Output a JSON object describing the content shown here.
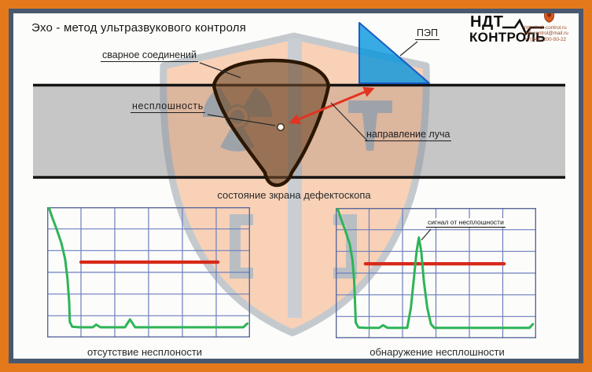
{
  "title": "Эхо - метод ультразвукового контроля",
  "logo": {
    "line1": "НДТ",
    "line2": "КОНТРОЛЬ",
    "pulse_icon": "ecg-pulse-icon",
    "emblem_icon": "shield-emblem-icon",
    "website": "http://ndt-control.ru",
    "email": "ndt-control@mail.ru",
    "phone": "+7(343) 200-50-22"
  },
  "diagram": {
    "weld_label": "сварное соединений",
    "defect_label": "несплошность",
    "probe_label": "ПЭП",
    "beam_label": "направление луча"
  },
  "screens": {
    "caption": "состояние зкрана дефектоскопа"
  },
  "colors": {
    "frame_orange": "#e4791b",
    "frame_slate": "#48596f",
    "plate_gray": "#c6c6c6",
    "weld_outline": "#2b1703",
    "probe_blue": "#0f94de",
    "beam_red": "#e23420",
    "watermark_orange": "#f5a877",
    "watermark_gray": "#8e98a4",
    "trace_green": "#2db457",
    "threshold_red": "#d8291b",
    "grid_blue": "#6d7fbe"
  },
  "chart_data": [
    {
      "type": "line",
      "caption": "отсутствие несплоности",
      "grid": {
        "cols": 6,
        "rows": 6,
        "color": "#6d7fbe",
        "border_color": "#5a699b"
      },
      "threshold": {
        "v": 2.53,
        "u1": 1.0,
        "u2": 5.05,
        "color": "#d8291b"
      },
      "series": [
        {
          "name": "trace",
          "color": "#2db457",
          "points": [
            [
              0.05,
              0
            ],
            [
              0.14,
              0.43
            ],
            [
              0.28,
              1.01
            ],
            [
              0.42,
              1.66
            ],
            [
              0.53,
              2.39
            ],
            [
              0.6,
              3.29
            ],
            [
              0.65,
              4.37
            ],
            [
              0.67,
              5.28
            ],
            [
              0.74,
              5.5
            ],
            [
              0.95,
              5.53
            ],
            [
              1.35,
              5.53
            ],
            [
              1.45,
              5.41
            ],
            [
              1.58,
              5.53
            ],
            [
              2.3,
              5.53
            ],
            [
              2.45,
              5.17
            ],
            [
              2.6,
              5.53
            ],
            [
              3.5,
              5.53
            ],
            [
              5.8,
              5.53
            ],
            [
              5.92,
              5.36
            ]
          ]
        }
      ]
    },
    {
      "type": "line",
      "caption": "обнаружение несплошности",
      "annotation": "сигнал от несплошности",
      "grid": {
        "cols": 6,
        "rows": 6,
        "color": "#6d7fbe",
        "border_color": "#5a699b"
      },
      "threshold": {
        "v": 2.57,
        "u1": 0.89,
        "u2": 5.04,
        "color": "#d8291b"
      },
      "series": [
        {
          "name": "trace",
          "color": "#2db457",
          "points": [
            [
              0.05,
              0
            ],
            [
              0.14,
              0.43
            ],
            [
              0.28,
              1.01
            ],
            [
              0.42,
              1.66
            ],
            [
              0.5,
              2.39
            ],
            [
              0.55,
              3.29
            ],
            [
              0.58,
              4.37
            ],
            [
              0.6,
              5.28
            ],
            [
              0.68,
              5.5
            ],
            [
              0.9,
              5.52
            ],
            [
              1.3,
              5.52
            ],
            [
              1.42,
              5.4
            ],
            [
              1.55,
              5.52
            ],
            [
              1.9,
              5.52
            ],
            [
              2.14,
              5.52
            ],
            [
              2.25,
              4.6
            ],
            [
              2.33,
              3.4
            ],
            [
              2.42,
              2.0
            ],
            [
              2.49,
              1.36
            ],
            [
              2.56,
              2.0
            ],
            [
              2.64,
              3.4
            ],
            [
              2.74,
              4.6
            ],
            [
              2.85,
              5.35
            ],
            [
              2.95,
              5.52
            ],
            [
              3.6,
              5.52
            ],
            [
              5.8,
              5.52
            ],
            [
              5.9,
              5.35
            ]
          ]
        }
      ]
    }
  ]
}
